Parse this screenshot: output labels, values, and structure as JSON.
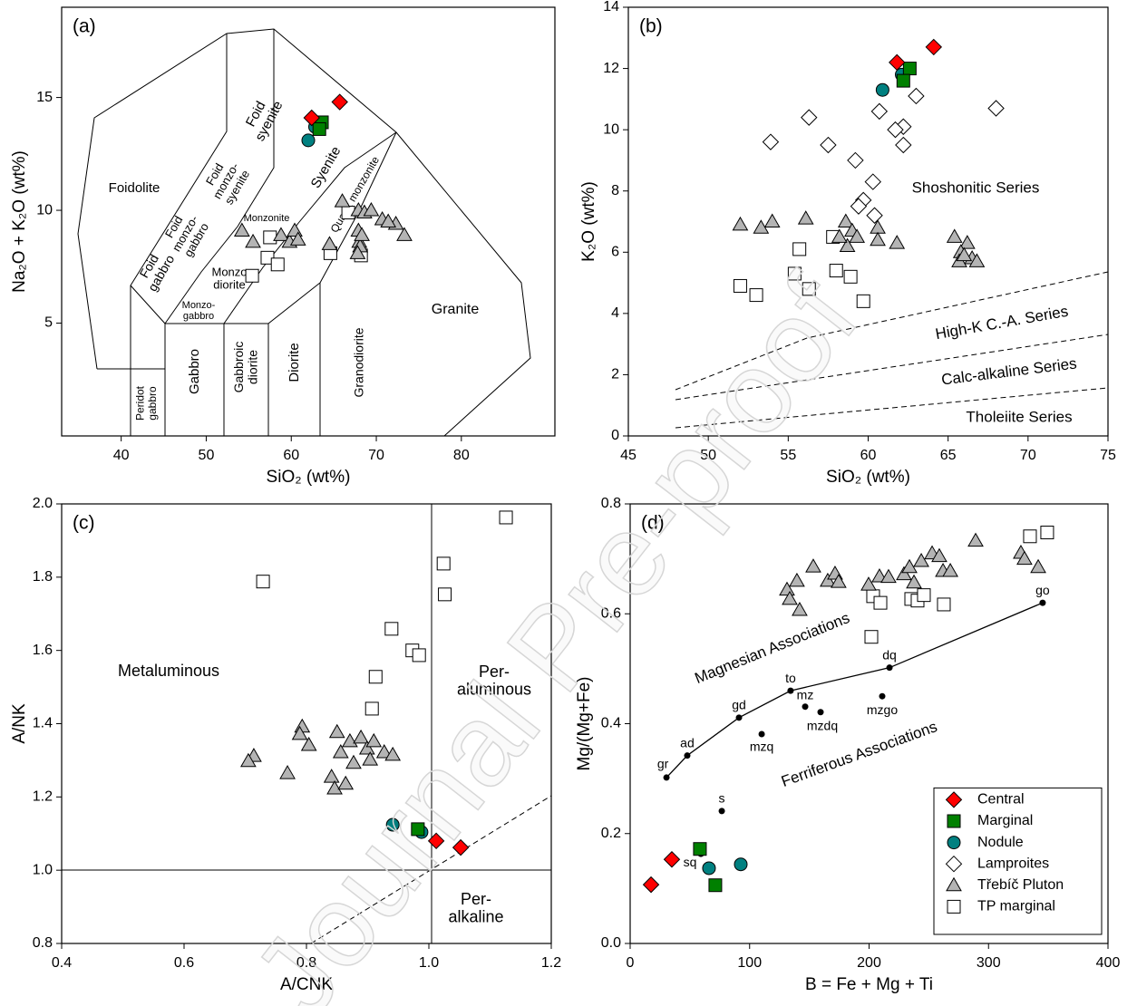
{
  "watermark": "Journal Pre-proof",
  "chart_data": [
    {
      "type": "scatter",
      "panel_label": "(a)",
      "xlabel": "SiO₂ (wt%)",
      "ylabel": "Na₂O + K₂O (wt%)",
      "xlim": [
        33,
        91
      ],
      "ylim": [
        0,
        19
      ],
      "xticks": [
        40,
        50,
        60,
        70,
        80
      ],
      "yticks": [
        5,
        10,
        15
      ],
      "grid": false,
      "annotations": [
        "Foidolite",
        [
          "Foid",
          "syenite"
        ],
        [
          "Foid",
          "monzo-",
          "syenite"
        ],
        "Syenite",
        [
          "Foid",
          "monzo-",
          "gabbro"
        ],
        [
          "Foid",
          "gabbro"
        ],
        "Monzonite",
        "Quartz monzonite",
        [
          "Monzo",
          "diorite"
        ],
        [
          "Monzo-",
          "gabbro"
        ],
        [
          "Peridot",
          "gabbro"
        ],
        "Gabbro",
        [
          "Gabbroic",
          "diorite"
        ],
        "Diorite",
        "Granodiorite",
        "Granite"
      ],
      "series": [
        {
          "marker": "diamond",
          "color": "#ff0000",
          "x": [
            65.7,
            62.4
          ],
          "values": [
            14.8,
            14.1
          ]
        },
        {
          "marker": "square",
          "color": "#008000",
          "x": [
            63.6,
            63.3
          ],
          "values": [
            13.9,
            13.6
          ]
        },
        {
          "marker": "circle",
          "color": "#008080",
          "x": [
            62.8,
            62.0
          ],
          "values": [
            13.7,
            13.1
          ]
        },
        {
          "marker": "triangle",
          "color": "#b4b4b4",
          "x": [
            54.2,
            55.5,
            58.8,
            59.8,
            60.4,
            60.8,
            66.0,
            64.5,
            67.9,
            68.6,
            69.4,
            70.7,
            72.3,
            73.3,
            67.9,
            68.0,
            68.1,
            68.3,
            67.8,
            71.4
          ],
          "values": [
            9.1,
            8.6,
            8.9,
            8.6,
            9.1,
            8.7,
            10.4,
            8.5,
            10.0,
            9.9,
            10.0,
            9.6,
            9.4,
            8.9,
            9.1,
            8.6,
            8.4,
            8.9,
            8.1,
            9.5
          ]
        },
        {
          "marker": "square",
          "color": "#ffffff",
          "x": [
            55.4,
            57.2,
            58.4,
            57.5,
            64.6,
            66.7,
            68.2
          ],
          "values": [
            7.1,
            7.9,
            7.6,
            8.8,
            8.1,
            9.9,
            8.0
          ]
        }
      ]
    },
    {
      "type": "scatter",
      "panel_label": "(b)",
      "xlabel": "SiO₂ (wt%)",
      "ylabel": "K₂O (wt%)",
      "xlim": [
        45,
        75
      ],
      "ylim": [
        0,
        14
      ],
      "xticks": [
        45,
        50,
        55,
        60,
        65,
        70,
        75
      ],
      "yticks": [
        0,
        2,
        4,
        6,
        8,
        10,
        12,
        14
      ],
      "grid": false,
      "annotations": [
        "Shoshonitic Series",
        "High-K C.-A. Series",
        "Calc-alkaline Series",
        "Tholeiite Series"
      ],
      "series": [
        {
          "marker": "diamond",
          "color": "#ff0000",
          "x": [
            64.1,
            61.8
          ],
          "values": [
            12.7,
            12.2
          ]
        },
        {
          "marker": "square",
          "color": "#008000",
          "x": [
            62.6,
            62.2
          ],
          "values": [
            12.0,
            11.6
          ]
        },
        {
          "marker": "circle",
          "color": "#008080",
          "x": [
            62.1,
            60.9
          ],
          "values": [
            11.8,
            11.3
          ]
        },
        {
          "marker": "diamond",
          "color": "#ffffff",
          "x": [
            68.0,
            63.0,
            56.3,
            60.7,
            62.2,
            61.7,
            53.9,
            57.5,
            62.2,
            59.2,
            60.3,
            59.7,
            59.4,
            60.4
          ],
          "values": [
            10.7,
            11.1,
            10.4,
            10.6,
            10.1,
            10.0,
            9.6,
            9.5,
            9.5,
            9.0,
            8.3,
            7.7,
            7.5,
            7.2
          ]
        },
        {
          "marker": "triangle",
          "color": "#b4b4b4",
          "x": [
            52.0,
            53.3,
            54.0,
            56.1,
            58.6,
            59.0,
            59.3,
            58.7,
            58.2,
            60.6,
            60.6,
            61.8,
            65.4,
            66.2,
            65.8,
            66.5,
            66.8,
            65.7,
            66.0
          ],
          "values": [
            6.9,
            6.8,
            7.0,
            7.1,
            7.0,
            6.7,
            6.5,
            6.2,
            6.5,
            6.8,
            6.4,
            6.3,
            6.5,
            6.3,
            6.0,
            5.8,
            5.7,
            5.7,
            5.9
          ]
        },
        {
          "marker": "square",
          "color": "#ffffff",
          "x": [
            57.8,
            55.7,
            55.4,
            58.0,
            58.9,
            52.0,
            53.0,
            56.3,
            59.7
          ],
          "values": [
            6.5,
            6.1,
            5.3,
            5.4,
            5.2,
            4.9,
            4.6,
            4.8,
            4.4
          ]
        }
      ]
    },
    {
      "type": "scatter",
      "panel_label": "(c)",
      "xlabel": "A/CNK",
      "ylabel": "A/NK",
      "xlim": [
        0.4,
        1.2
      ],
      "ylim": [
        0.8,
        2.0
      ],
      "xticks": [
        0.4,
        0.6,
        0.8,
        {
          "value": 1,
          "label": "1.0"
        },
        1.2
      ],
      "yticks": [
        0.8,
        {
          "value": 1,
          "label": "1.0"
        },
        1.2,
        1.4,
        1.6,
        1.8,
        {
          "value": 2,
          "label": "2.0"
        }
      ],
      "grid": false,
      "annotations": [
        "Metaluminous",
        [
          "Per-",
          "aluminous"
        ],
        [
          "Per-",
          "alkaline"
        ]
      ],
      "series": [
        {
          "marker": "diamond",
          "color": "#ff0000",
          "x": [
            1.012,
            1.052
          ],
          "values": [
            1.08,
            1.062
          ]
        },
        {
          "marker": "square",
          "color": "#008000",
          "x": [
            0.982
          ],
          "values": [
            1.112
          ]
        },
        {
          "marker": "circle",
          "color": "#008080",
          "x": [
            0.941,
            0.988
          ],
          "values": [
            1.124,
            1.104
          ]
        },
        {
          "marker": "triangle",
          "color": "#b4b4b4",
          "x": [
            0.714,
            0.705,
            0.769,
            0.793,
            0.789,
            0.804,
            0.85,
            0.856,
            0.871,
            0.889,
            0.899,
            0.91,
            0.927,
            0.941,
            0.904,
            0.877,
            0.841,
            0.846,
            0.864
          ],
          "values": [
            1.312,
            1.298,
            1.265,
            1.392,
            1.372,
            1.342,
            1.377,
            1.322,
            1.352,
            1.362,
            1.332,
            1.352,
            1.322,
            1.315,
            1.302,
            1.293,
            1.255,
            1.223,
            1.236
          ]
        },
        {
          "marker": "square",
          "color": "#ffffff",
          "x": [
            0.729,
            1.126,
            1.024,
            1.026,
            0.939,
            0.973,
            0.984,
            0.913,
            0.907
          ],
          "values": [
            1.788,
            1.963,
            1.837,
            1.753,
            1.659,
            1.6,
            1.587,
            1.528,
            1.441
          ]
        }
      ]
    },
    {
      "type": "scatter",
      "panel_label": "(d)",
      "xlabel": "B = Fe + Mg + Ti",
      "ylabel": "Mg/(Mg+Fe)",
      "xlim": [
        0,
        400
      ],
      "ylim": [
        0,
        0.8
      ],
      "xticks": [
        0,
        100,
        200,
        300,
        400
      ],
      "yticks": [
        {
          "value": 0,
          "label": "0.0"
        },
        0.2,
        0.4,
        0.6,
        0.8
      ],
      "grid": false,
      "legend": "lower right",
      "annotations": [
        "Magnesian Associations",
        "Ferriferous Associations"
      ],
      "series": [
        {
          "name": "Central",
          "marker": "diamond",
          "color": "#ff0000",
          "x": [
            17.5,
            34.9
          ],
          "values": [
            0.107,
            0.153
          ]
        },
        {
          "name": "Marginal",
          "marker": "square",
          "color": "#008000",
          "x": [
            58.4,
            71.3
          ],
          "values": [
            0.172,
            0.106
          ]
        },
        {
          "name": "Nodule",
          "marker": "circle",
          "color": "#008080",
          "x": [
            66.0,
            92.6
          ],
          "values": [
            0.137,
            0.144
          ]
        },
        {
          "name": "Lamproites",
          "marker": "diamond",
          "color": "#ffffff",
          "x": [],
          "values": []
        },
        {
          "name": "Třebíč Pluton",
          "marker": "triangle",
          "color": "#b4b4b4",
          "x": [
            131.3,
            133.6,
            139.6,
            141.9,
            153.3,
            165.4,
            171.5,
            174.5,
            199.6,
            208.7,
            216.3,
            229.2,
            233.8,
            237.6,
            243.7,
            252.8,
            258.8,
            261.9,
            268.0,
            289.2,
            327.1,
            330.1,
            341.6
          ],
          "values": [
            0.644,
            0.627,
            0.66,
            0.607,
            0.686,
            0.66,
            0.673,
            0.658,
            0.653,
            0.668,
            0.667,
            0.672,
            0.685,
            0.657,
            0.696,
            0.71,
            0.705,
            0.678,
            0.678,
            0.733,
            0.711,
            0.7,
            0.685
          ]
        },
        {
          "name": "TP marginal",
          "marker": "square",
          "color": "#ffffff",
          "x": [
            201.9,
            203.4,
            209.5,
            235.3,
            240.6,
            245.9,
            262.6,
            334.7,
            349.1
          ],
          "values": [
            0.558,
            0.632,
            0.62,
            0.627,
            0.624,
            0.634,
            0.617,
            0.741,
            0.748
          ]
        },
        {
          "marker": "dot",
          "color": "#000000",
          "connect": true,
          "x": [
            30.4,
            47.8,
            91.1,
            134.3,
            217.1,
            345.3
          ],
          "values": [
            0.302,
            0.342,
            0.411,
            0.46,
            0.502,
            0.62
          ],
          "point_labels": [
            "gr",
            "ad",
            "gd",
            "to",
            "dq",
            "go"
          ]
        },
        {
          "marker": "dot",
          "color": "#000000",
          "x": [
            146.5,
            159.4,
            110.1,
            211.0,
            76.7,
            59.2
          ],
          "values": [
            0.431,
            0.421,
            0.381,
            0.45,
            0.241,
            0.163
          ],
          "point_labels": [
            "mz",
            "mzdq",
            "mzq",
            "mzgo",
            "s",
            "sq"
          ]
        }
      ]
    }
  ]
}
